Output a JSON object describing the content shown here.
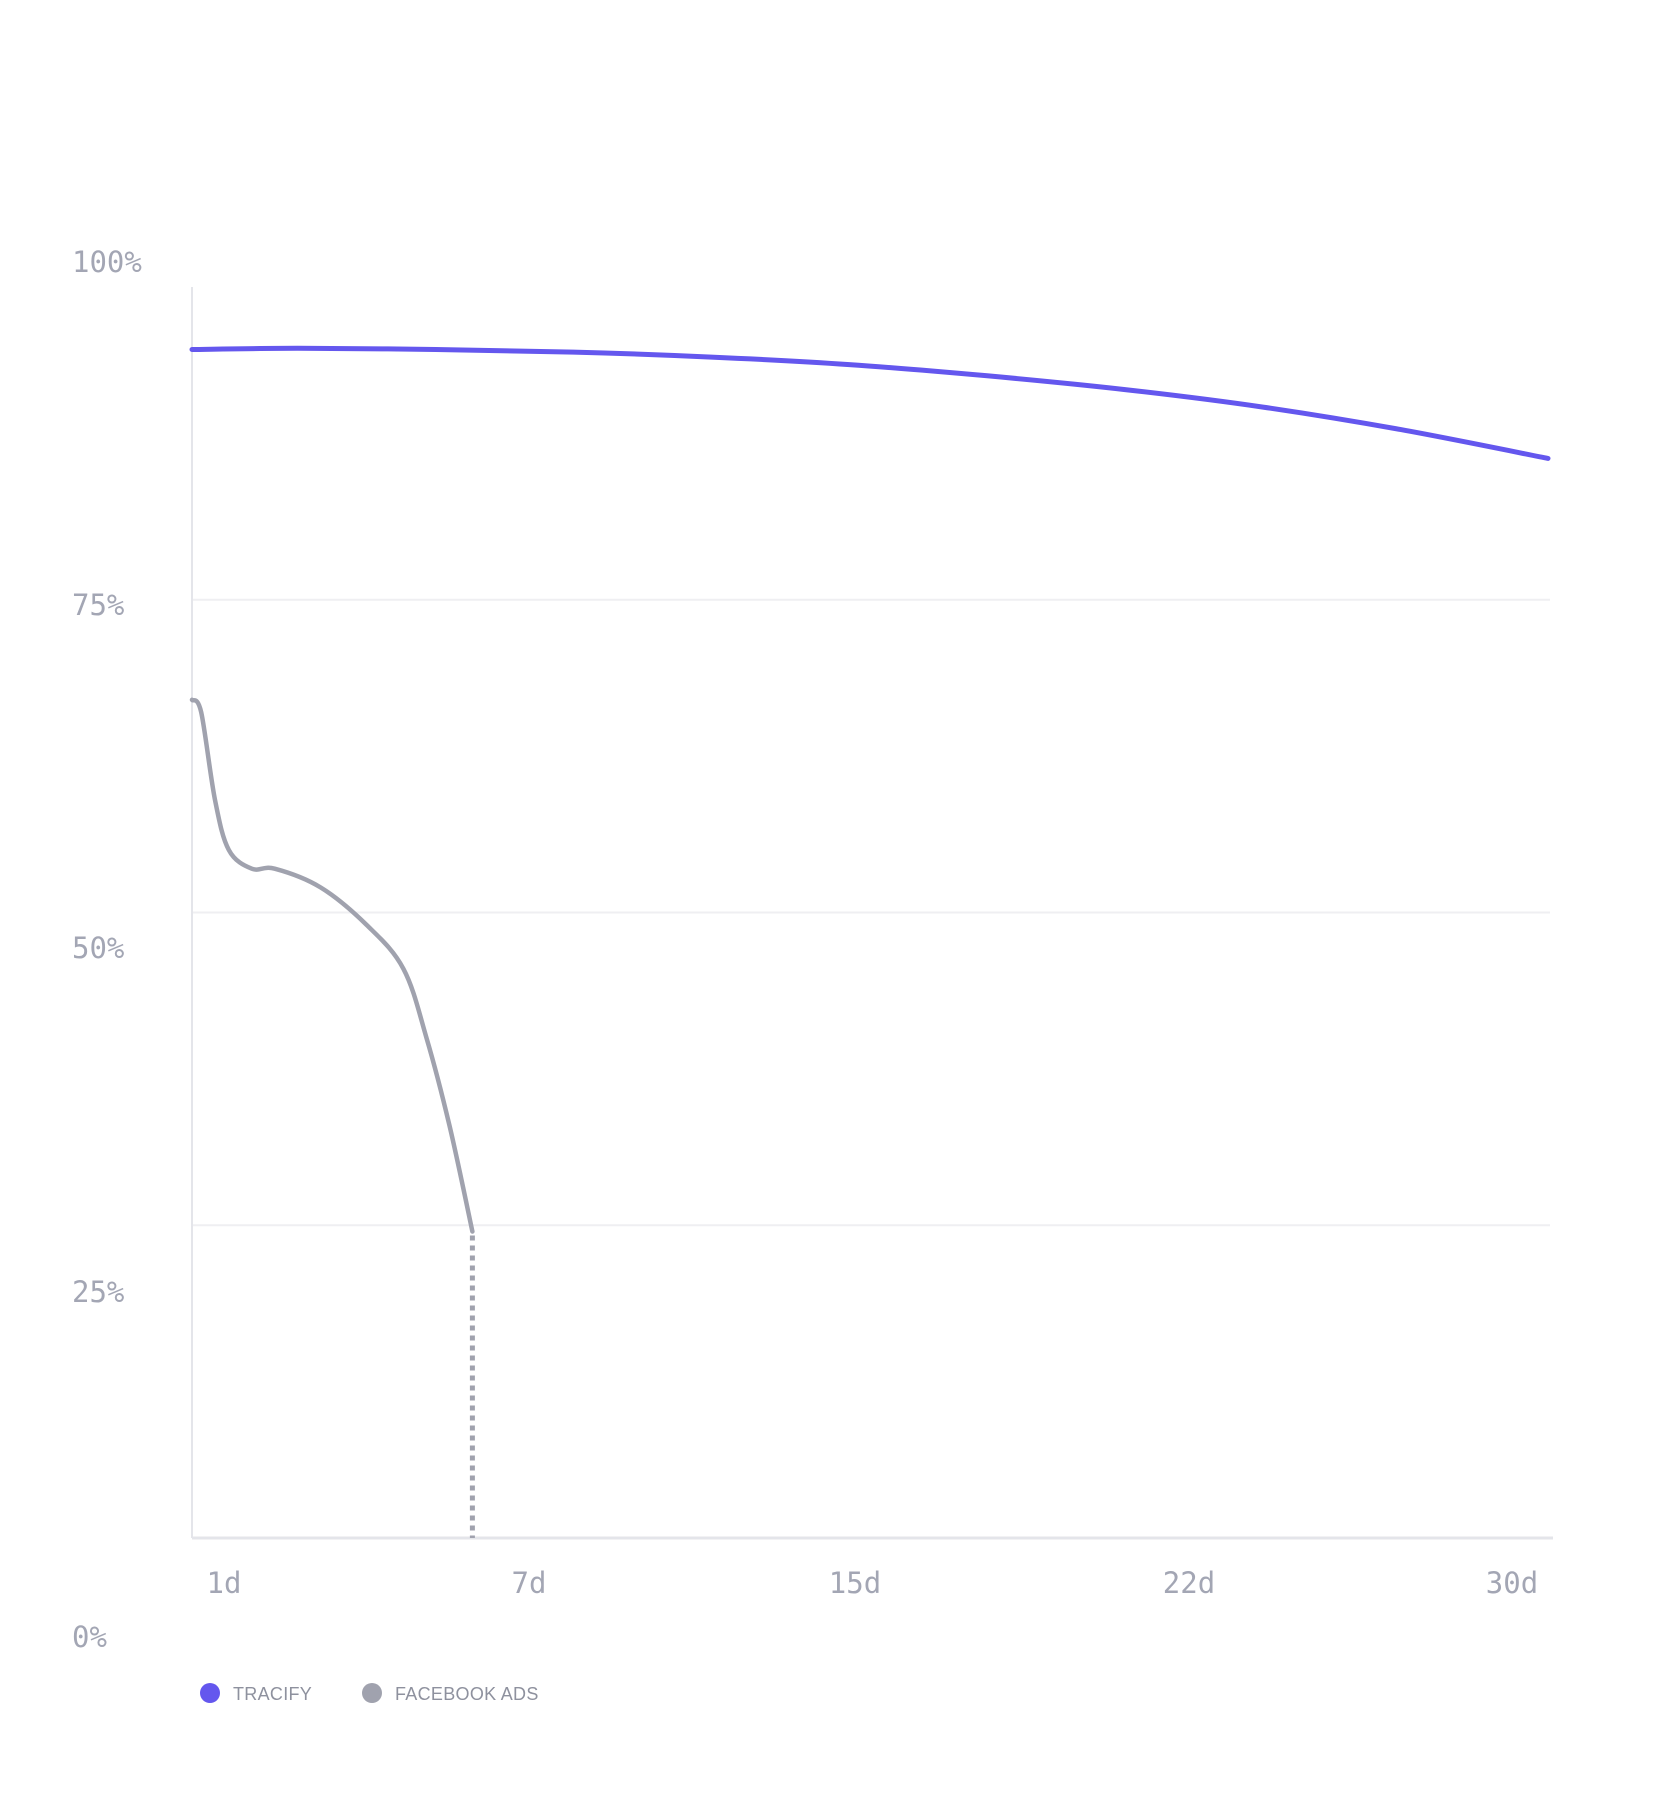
{
  "chart_data": {
    "type": "line",
    "title": "",
    "xlabel": "",
    "ylabel": "",
    "x_ticks": [
      {
        "label": "1d",
        "day": 1
      },
      {
        "label": "7d",
        "day": 7
      },
      {
        "label": "15d",
        "day": 15
      },
      {
        "label": "22d",
        "day": 22
      },
      {
        "label": "30d",
        "day": 30
      }
    ],
    "y_ticks": [
      {
        "label": "100%",
        "value": 100
      },
      {
        "label": "75%",
        "value": 75
      },
      {
        "label": "50%",
        "value": 50
      },
      {
        "label": "25%",
        "value": 25
      },
      {
        "label": "0%",
        "value": 0
      }
    ],
    "xlim": [
      0.7,
      30.2
    ],
    "ylim": [
      0,
      100
    ],
    "grid": "horizontal",
    "legend_position": "bottom-left",
    "series": [
      {
        "name": "TRACIFY",
        "color": "#6457ee",
        "x": [
          0.7,
          3,
          6,
          9,
          12,
          15,
          18,
          21,
          24,
          27,
          30.2
        ],
        "y": [
          95,
          95.1,
          95,
          94.8,
          94.4,
          93.8,
          92.9,
          91.8,
          90.4,
          88.6,
          86.3
        ]
      },
      {
        "name": "FACEBOOK ADS",
        "color": "#a0a2ae",
        "x": [
          0.7,
          0.9,
          1.2,
          1.5,
          2.0,
          2.5,
          3.5,
          4.5,
          5.3,
          5.8,
          6.3,
          6.8
        ],
        "y": [
          67,
          66,
          59,
          55,
          53.5,
          53.5,
          52,
          49,
          45.5,
          40,
          33,
          24.5
        ],
        "drop_to_zero_at": 6.8
      }
    ]
  }
}
